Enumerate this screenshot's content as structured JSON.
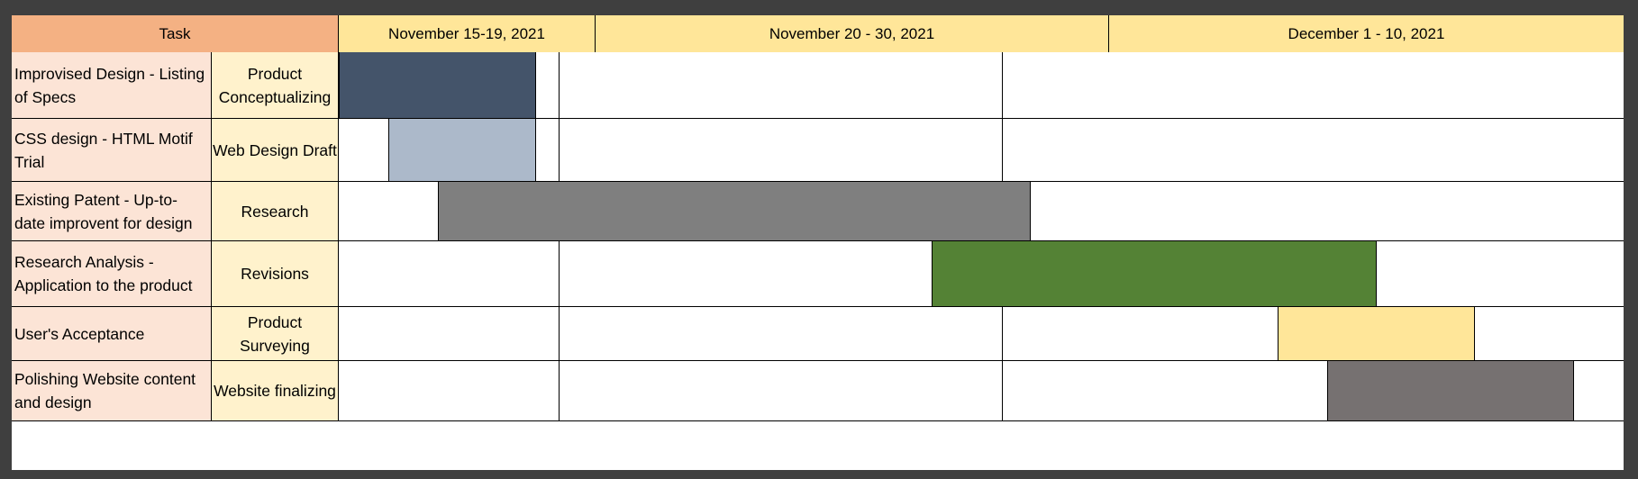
{
  "header": {
    "task_label": "Task",
    "periods": [
      "November 15-19, 2021",
      "November 20 - 30, 2021",
      "December 1 - 10, 2021"
    ]
  },
  "chart_data": {
    "type": "gantt",
    "title": "",
    "x_periods": [
      "November 15-19, 2021",
      "November 20 - 30, 2021",
      "December 1 - 10, 2021"
    ],
    "x_range": [
      "2021-11-15",
      "2021-12-10"
    ],
    "tasks": [
      {
        "task": "Improvised Design - Listing of Specs",
        "phase": "Product Conceptualizing",
        "start": "2021-11-15",
        "end": "2021-11-18",
        "color": "#44546a"
      },
      {
        "task": "CSS design - HTML Motif Trial",
        "phase": "Web Design Draft",
        "start": "2021-11-16",
        "end": "2021-11-18",
        "color": "#acb9ca"
      },
      {
        "task": "Existing Patent - Up-to-date improvent for design",
        "phase": "Research",
        "start": "2021-11-17",
        "end": "2021-11-28",
        "color": "#7f7f7f"
      },
      {
        "task": "Research Analysis - Application to the product",
        "phase": "Revisions",
        "start": "2021-11-27",
        "end": "2021-12-05",
        "color": "#548235"
      },
      {
        "task": "User's Acceptance",
        "phase": "Product Surveying",
        "start": "2021-12-04",
        "end": "2021-12-07",
        "color": "#ffe699"
      },
      {
        "task": "Polishing Website content and design",
        "phase": "Website finalizing",
        "start": "2021-12-05",
        "end": "2021-12-09",
        "color": "#767171"
      }
    ]
  },
  "colors": {
    "task_header_bg": "#f4b183",
    "period_header_bg": "#ffe699",
    "task_col_bg": "#fce4d6",
    "phase_col_bg": "#fff2cc",
    "frame": "#3f3f3f"
  }
}
